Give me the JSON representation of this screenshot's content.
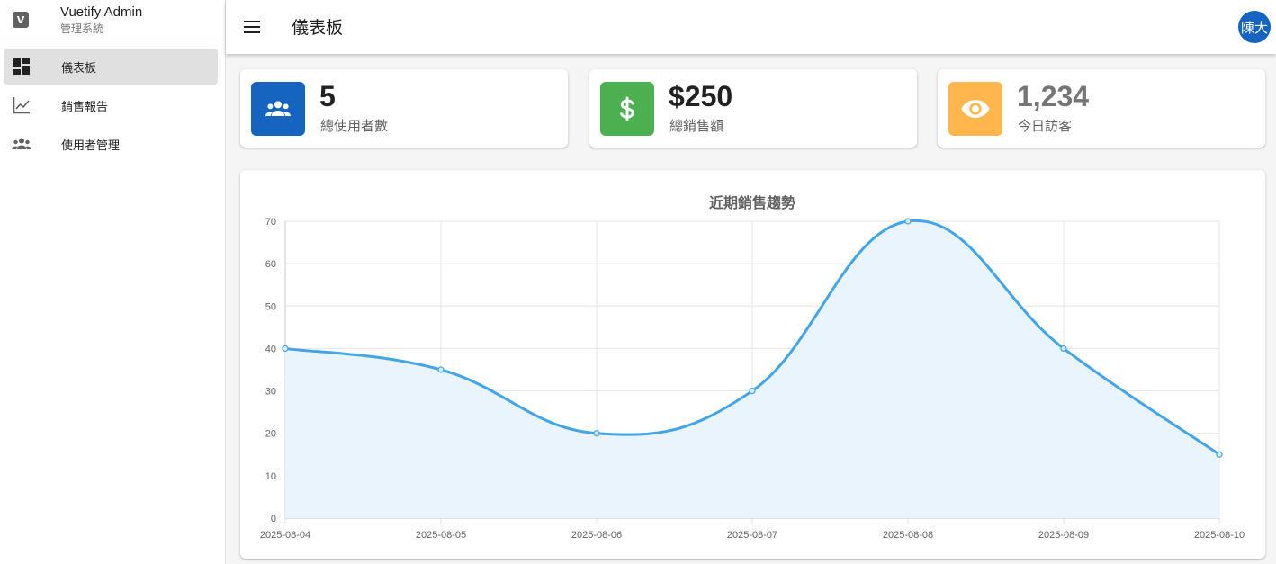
{
  "brand": {
    "logo": "V",
    "title": "Vuetify Admin",
    "subtitle": "管理系統"
  },
  "sidebar": {
    "items": [
      {
        "label": "儀表板",
        "icon": "dashboard-icon",
        "active": true
      },
      {
        "label": "銷售報告",
        "icon": "chart-line-icon",
        "active": false
      },
      {
        "label": "使用者管理",
        "icon": "users-icon",
        "active": false
      }
    ]
  },
  "header": {
    "title": "儀表板",
    "avatar": "陳大"
  },
  "stats": [
    {
      "value": "5",
      "label": "總使用者數",
      "icon": "users-icon",
      "color": "#1565c0",
      "value_color": "#212121"
    },
    {
      "value": "$250",
      "label": "總銷售額",
      "icon": "dollar-icon",
      "color": "#4caf50",
      "value_color": "#212121"
    },
    {
      "value": "1,234",
      "label": "今日訪客",
      "icon": "eye-icon",
      "color": "#ffb74d",
      "value_color": "#757575"
    }
  ],
  "colors": {
    "accent": "#1565c0",
    "line": "#42a5e8",
    "fill": "#eaf4fc"
  },
  "chart_data": {
    "type": "area",
    "title": "近期銷售趨勢",
    "x": [
      "2025-08-04",
      "2025-08-05",
      "2025-08-06",
      "2025-08-07",
      "2025-08-08",
      "2025-08-09",
      "2025-08-10"
    ],
    "series": [
      {
        "values": [
          40,
          35,
          20,
          30,
          70,
          40,
          15
        ]
      }
    ],
    "ylim": [
      0,
      70
    ],
    "yticks": [
      0,
      10,
      20,
      30,
      40,
      50,
      60,
      70
    ],
    "grid": true,
    "legend": "none"
  }
}
